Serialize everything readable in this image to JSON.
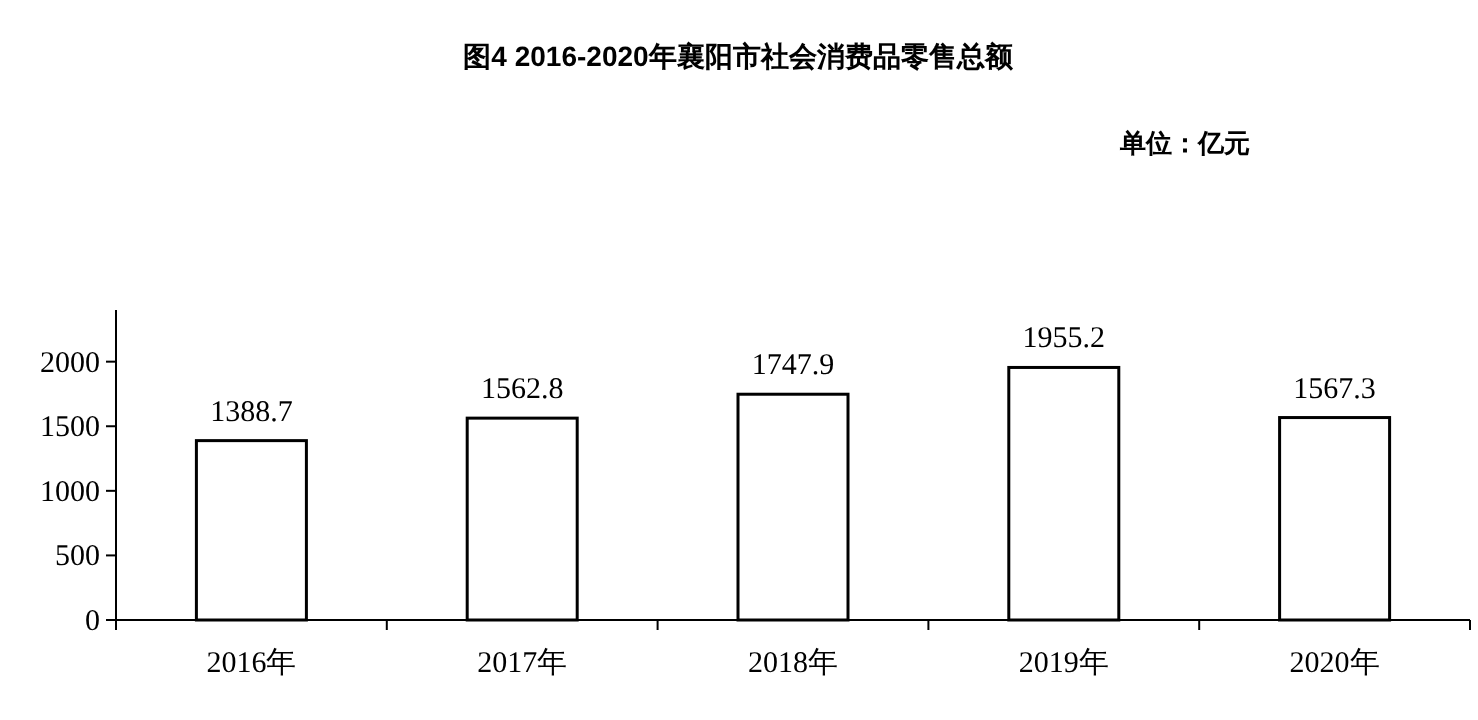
{
  "chart_data": {
    "type": "bar",
    "title": "图4  2016-2020年襄阳市社会消费品零售总额",
    "annotations": [
      "单位：亿元"
    ],
    "categories": [
      "2016年",
      "2017年",
      "2018年",
      "2019年",
      "2020年"
    ],
    "values": [
      1388.7,
      1562.8,
      1747.9,
      1955.2,
      1567.3
    ],
    "color": "#ffffff",
    "ylim": [
      0,
      2400
    ],
    "yticks": [
      0,
      500,
      1000,
      1500,
      2000
    ],
    "grid": false,
    "data_labels": true
  }
}
